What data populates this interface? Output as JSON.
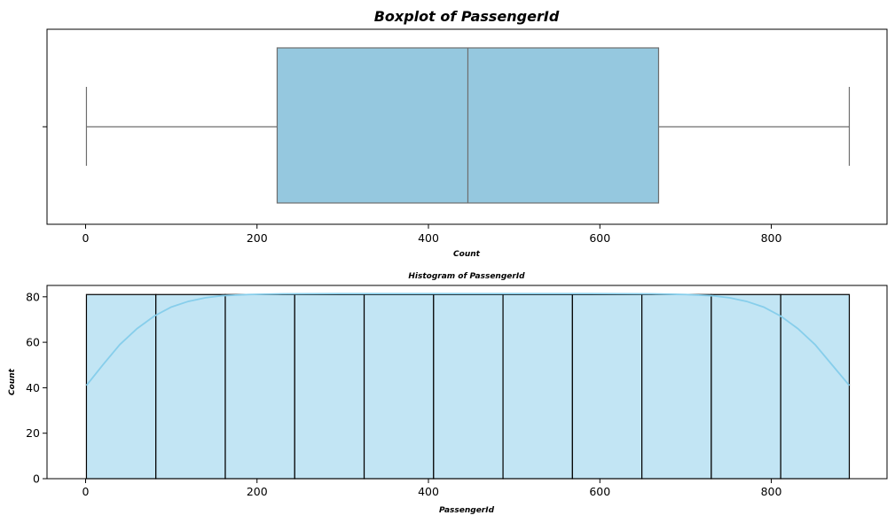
{
  "chart_data": [
    {
      "type": "boxplot",
      "title": "Boxplot of PassengerId",
      "xlabel": "Count",
      "ylabel": "",
      "xlim": [
        -45,
        935
      ],
      "xticks": [
        0,
        200,
        400,
        600,
        800
      ],
      "stats": {
        "min": 1,
        "q1": 223.5,
        "median": 446,
        "q3": 668.5,
        "max": 891
      },
      "box_color": "#95c8df",
      "line_color": "#6d6d6d"
    },
    {
      "type": "bar",
      "title": "Histogram of PassengerId",
      "xlabel": "PassengerId",
      "ylabel": "Count",
      "xlim": [
        -45,
        935
      ],
      "ylim": [
        0,
        85
      ],
      "xticks": [
        0,
        200,
        400,
        600,
        800
      ],
      "yticks": [
        0,
        20,
        40,
        60,
        80
      ],
      "bin_edges": [
        1,
        82,
        163,
        244,
        325,
        406,
        487,
        568,
        649,
        730,
        811,
        891
      ],
      "values": [
        81,
        81,
        81,
        81,
        81,
        81,
        81,
        81,
        81,
        81,
        81
      ],
      "kde_x": [
        1,
        20,
        40,
        60,
        80,
        100,
        120,
        140,
        160,
        190,
        230,
        300,
        446,
        590,
        660,
        700,
        730,
        751,
        771,
        791,
        811,
        831,
        851,
        871,
        891
      ],
      "kde_y": [
        41,
        50,
        59,
        66,
        71.5,
        75.5,
        78,
        79.6,
        80.5,
        81,
        81.3,
        81.4,
        81.4,
        81.4,
        81.3,
        81,
        80.5,
        79.6,
        78,
        75.5,
        71.5,
        66,
        59,
        50,
        41
      ],
      "bar_color": "#c2e5f4",
      "edge_color": "#000000",
      "kde_color": "#87ceeb"
    }
  ]
}
